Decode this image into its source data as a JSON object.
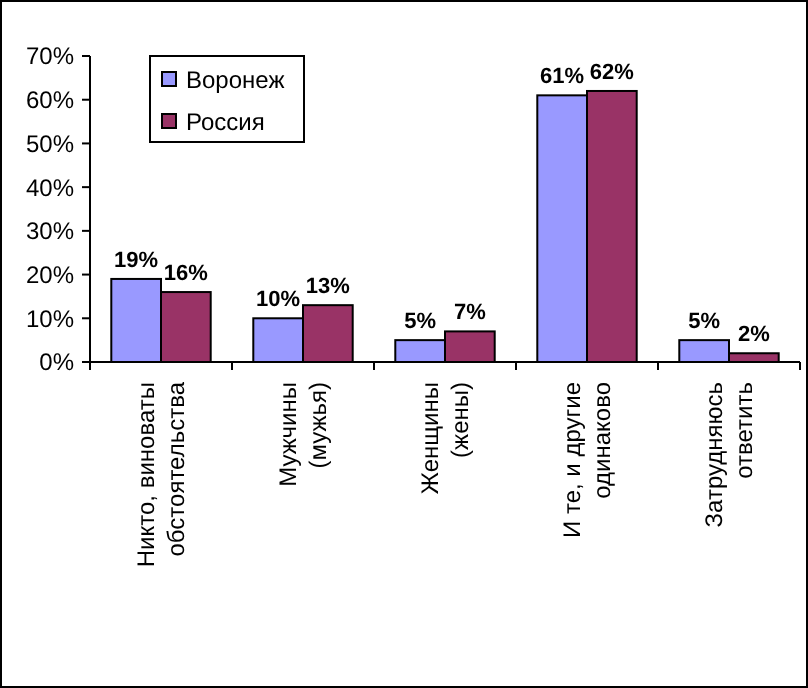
{
  "chart_data": {
    "type": "bar",
    "categories": [
      "Никто, виноваты\nобстоятельства",
      "Мужчины\n(мужья)",
      "Женщины\n(жены)",
      "И те, и другие\nодинаково",
      "Затрудняюсь\nответить"
    ],
    "series": [
      {
        "name": "Воронеж",
        "color": "#9999ff",
        "values": [
          19,
          10,
          5,
          61,
          5
        ],
        "value_labels": [
          "19%",
          "10%",
          "5%",
          "61%",
          "5%"
        ]
      },
      {
        "name": "Россия",
        "color": "#993366",
        "values": [
          16,
          13,
          7,
          62,
          2
        ],
        "value_labels": [
          "16%",
          "13%",
          "7%",
          "62%",
          "2%"
        ]
      }
    ],
    "ylim": [
      0,
      70
    ],
    "yticks": [
      {
        "value": 0,
        "label": "0%"
      },
      {
        "value": 10,
        "label": "10%"
      },
      {
        "value": 20,
        "label": "20%"
      },
      {
        "value": 30,
        "label": "30%"
      },
      {
        "value": 40,
        "label": "40%"
      },
      {
        "value": 50,
        "label": "50%"
      },
      {
        "value": 60,
        "label": "60%"
      },
      {
        "value": 70,
        "label": "70%"
      }
    ],
    "grid": false,
    "legend": "top left"
  }
}
